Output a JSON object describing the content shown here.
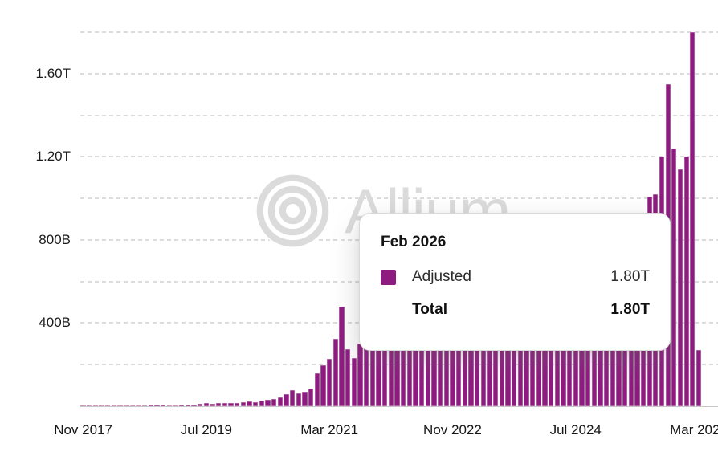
{
  "watermark": {
    "text": "Allium"
  },
  "tooltip": {
    "title": "Feb 2026",
    "series_row": {
      "label": "Adjusted",
      "value": "1.80T",
      "swatch_color": "#8E1B80"
    },
    "total_row": {
      "label": "Total",
      "value": "1.80T"
    }
  },
  "colors": {
    "bar": "#8E1B80",
    "gridline": "#dcdcdc",
    "axis_line": "#c7c7c7",
    "watermark": "#dbdbdb"
  },
  "chart_data": {
    "type": "bar",
    "series_name": "Adjusted",
    "title": "",
    "xlabel": "",
    "ylabel": "",
    "ylim_B": [
      0,
      1800
    ],
    "grid": "horizontal dashed, every 200B",
    "legend": "none (single series, shown in tooltip)",
    "highlighted_month": "Feb 2026",
    "x": [
      "Nov 2017",
      "Dec 2017",
      "Jan 2018",
      "Feb 2018",
      "Mar 2018",
      "Apr 2018",
      "May 2018",
      "Jun 2018",
      "Jul 2018",
      "Aug 2018",
      "Sep 2018",
      "Oct 2018",
      "Nov 2018",
      "Dec 2018",
      "Jan 2019",
      "Feb 2019",
      "Mar 2019",
      "Apr 2019",
      "May 2019",
      "Jun 2019",
      "Jul 2019",
      "Aug 2019",
      "Sep 2019",
      "Oct 2019",
      "Nov 2019",
      "Dec 2019",
      "Jan 2020",
      "Feb 2020",
      "Mar 2020",
      "Apr 2020",
      "May 2020",
      "Jun 2020",
      "Jul 2020",
      "Aug 2020",
      "Sep 2020",
      "Oct 2020",
      "Nov 2020",
      "Dec 2020",
      "Jan 2021",
      "Feb 2021",
      "Mar 2021",
      "Apr 2021",
      "May 2021",
      "Jun 2021",
      "Jul 2021",
      "Aug 2021",
      "Sep 2021",
      "Oct 2021",
      "Nov 2021",
      "Dec 2021",
      "Jan 2022",
      "Feb 2022",
      "Mar 2022",
      "Apr 2022",
      "May 2022",
      "Jun 2022",
      "Jul 2022",
      "Aug 2022",
      "Sep 2022",
      "Oct 2022",
      "Nov 2022",
      "Dec 2022",
      "Jan 2023",
      "Feb 2023",
      "Mar 2023",
      "Apr 2023",
      "May 2023",
      "Jun 2023",
      "Jul 2023",
      "Aug 2023",
      "Sep 2023",
      "Oct 2023",
      "Nov 2023",
      "Dec 2023",
      "Jan 2024",
      "Feb 2024",
      "Mar 2024",
      "Apr 2024",
      "May 2024",
      "Jun 2024",
      "Jul 2024",
      "Aug 2024",
      "Sep 2024",
      "Oct 2024",
      "Nov 2024",
      "Dec 2024",
      "Jan 2025",
      "Feb 2025",
      "Mar 2025",
      "Apr 2025",
      "May 2025",
      "Jun 2025",
      "Jul 2025",
      "Aug 2025",
      "Sep 2025",
      "Oct 2025",
      "Nov 2025",
      "Dec 2025",
      "Jan 2026",
      "Feb 2026",
      "Mar 2026"
    ],
    "values_B": [
      3,
      4,
      4,
      4,
      5,
      4,
      5,
      4,
      5,
      5,
      5,
      6,
      6,
      6,
      5,
      5,
      6,
      7,
      8,
      13,
      15,
      13,
      15,
      14,
      17,
      15,
      19,
      22,
      21,
      28,
      30,
      35,
      44,
      58,
      76,
      63,
      71,
      84,
      160,
      196,
      226,
      325,
      480,
      273,
      230,
      300,
      320,
      350,
      400,
      380,
      420,
      390,
      430,
      450,
      520,
      480,
      400,
      380,
      410,
      430,
      520,
      400,
      390,
      420,
      480,
      410,
      390,
      380,
      370,
      360,
      350,
      390,
      430,
      460,
      490,
      530,
      620,
      580,
      560,
      540,
      550,
      570,
      560,
      610,
      690,
      730,
      710,
      660,
      690,
      710,
      740,
      850,
      1010,
      1020,
      1200,
      1550,
      1240,
      1140,
      1200,
      1800,
      270
    ],
    "x_ticks": [
      {
        "index": 0,
        "label": "Nov 2017"
      },
      {
        "index": 20,
        "label": "Jul 2019"
      },
      {
        "index": 40,
        "label": "Mar 2021"
      },
      {
        "index": 60,
        "label": "Nov 2022"
      },
      {
        "index": 80,
        "label": "Jul 2024"
      },
      {
        "index": 100,
        "label": "Mar 2026"
      }
    ],
    "y_gridlines_B": [
      200,
      400,
      600,
      800,
      1000,
      1200,
      1400,
      1600,
      1800
    ],
    "y_ticks": [
      {
        "value_B": 400,
        "label": "400B"
      },
      {
        "value_B": 800,
        "label": "800B"
      },
      {
        "value_B": 1200,
        "label": "1.20T"
      },
      {
        "value_B": 1600,
        "label": "1.60T"
      }
    ]
  }
}
